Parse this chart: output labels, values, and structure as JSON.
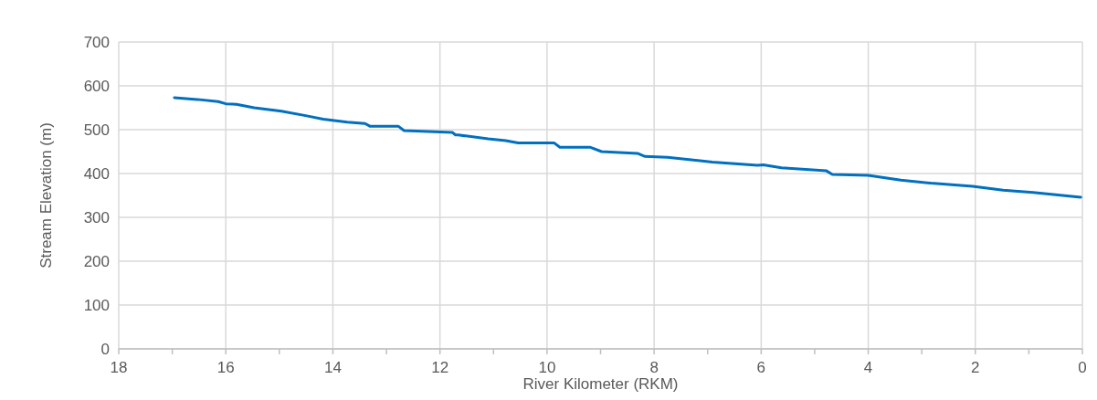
{
  "chart_data": {
    "type": "line",
    "xlabel": "River Kilometer (RKM)",
    "ylabel": "Stream Elevation (m)",
    "x": [
      16.96,
      16.53,
      16.14,
      16.0,
      15.8,
      15.47,
      14.96,
      14.51,
      14.18,
      13.73,
      13.4,
      13.31,
      12.78,
      12.67,
      11.77,
      11.71,
      11.66,
      11.1,
      10.77,
      10.54,
      9.87,
      9.76,
      9.2,
      8.98,
      8.31,
      8.17,
      7.75,
      6.91,
      6.07,
      5.96,
      5.62,
      4.78,
      4.67,
      4.0,
      3.39,
      2.83,
      2.05,
      1.48,
      0.92,
      0.03
    ],
    "series": [
      {
        "color": "#0070c0",
        "values": [
          573,
          569,
          564,
          559,
          558,
          550,
          542,
          532,
          524,
          517,
          514,
          508,
          508,
          498,
          494,
          488,
          488,
          479,
          475,
          470,
          470,
          460,
          460,
          450,
          446,
          439,
          437,
          426,
          419,
          420,
          413,
          406,
          398,
          396,
          385,
          378,
          371,
          362,
          357,
          346
        ]
      }
    ],
    "xlim": [
      18,
      0
    ],
    "xticks": [
      18,
      {
        "value": 17,
        "label": null
      },
      16,
      {
        "value": 15,
        "label": null
      },
      14,
      {
        "value": 13,
        "label": null
      },
      12,
      {
        "value": 11,
        "label": null
      },
      10,
      {
        "value": 9,
        "label": null
      },
      8,
      {
        "value": 7,
        "label": null
      },
      6,
      {
        "value": 5,
        "label": null
      },
      4,
      {
        "value": 3,
        "label": null
      },
      2,
      {
        "value": 1,
        "label": null
      },
      0
    ],
    "ylim": [
      0,
      700
    ],
    "yticks": [
      0,
      100,
      200,
      300,
      400,
      500,
      600,
      700
    ],
    "grid": true,
    "marker": "none",
    "line_style": "solid"
  }
}
